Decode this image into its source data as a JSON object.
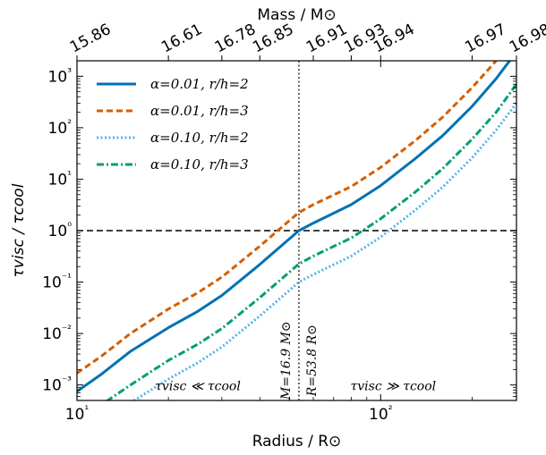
{
  "chart_data": {
    "type": "line",
    "title": "",
    "xlabel": "Radius / R⊙",
    "ylabel": "τvisc / τcool",
    "top_xlabel": "Mass / M⊙",
    "xscale": "log",
    "yscale": "log",
    "xlim": [
      10,
      280
    ],
    "ylim": [
      0.0005,
      2000
    ],
    "x_ticks": [
      {
        "value": 10,
        "label": "10¹"
      },
      {
        "value": 100,
        "label": "10²"
      }
    ],
    "y_ticks": [
      {
        "value": 0.001,
        "label": "10⁻³"
      },
      {
        "value": 0.01,
        "label": "10⁻²"
      },
      {
        "value": 0.1,
        "label": "10⁻¹"
      },
      {
        "value": 1,
        "label": "10⁰"
      },
      {
        "value": 10,
        "label": "10¹"
      },
      {
        "value": 100,
        "label": "10²"
      },
      {
        "value": 1000,
        "label": "10³"
      }
    ],
    "top_ticks": [
      {
        "radius": 10,
        "label": "15.86"
      },
      {
        "radius": 20,
        "label": "16.61"
      },
      {
        "radius": 30,
        "label": "16.78"
      },
      {
        "radius": 40,
        "label": "16.85"
      },
      {
        "radius": 60,
        "label": "16.91"
      },
      {
        "radius": 80,
        "label": "16.93"
      },
      {
        "radius": 100,
        "label": "16.94"
      },
      {
        "radius": 200,
        "label": "16.97"
      },
      {
        "radius": 280,
        "label": "16.98"
      }
    ],
    "legend_position": "top-left",
    "series": [
      {
        "name": "α=0.01, r/h=2",
        "color": "#0072b2",
        "style": "solid",
        "x": [
          10,
          12,
          15,
          20,
          25,
          30,
          40,
          53.8,
          60,
          80,
          100,
          130,
          160,
          200,
          240,
          280
        ],
        "y": [
          0.00075,
          0.0016,
          0.0045,
          0.013,
          0.027,
          0.055,
          0.22,
          1.0,
          1.4,
          3.2,
          7.5,
          25,
          70,
          260,
          900,
          3000
        ]
      },
      {
        "name": "α=0.01, r/h=3",
        "color": "#d55e00",
        "style": "dashed",
        "x": [
          10,
          12,
          15,
          20,
          25,
          30,
          40,
          53.8,
          60,
          80,
          100,
          130,
          160,
          200,
          240
        ],
        "y": [
          0.0017,
          0.0036,
          0.01,
          0.03,
          0.062,
          0.125,
          0.5,
          2.25,
          3.2,
          7.2,
          17,
          56,
          160,
          600,
          2000
        ]
      },
      {
        "name": "α=0.10, r/h=2",
        "color": "#56b4e9",
        "style": "dotted",
        "x": [
          15,
          20,
          25,
          30,
          40,
          53.8,
          60,
          80,
          100,
          130,
          160,
          200,
          240,
          280
        ],
        "y": [
          0.00045,
          0.0013,
          0.0027,
          0.0055,
          0.022,
          0.1,
          0.14,
          0.32,
          0.75,
          2.5,
          7,
          26,
          90,
          300
        ]
      },
      {
        "name": "α=0.10, r/h=3",
        "color": "#009e73",
        "style": "dashdot",
        "x": [
          12.5,
          15,
          20,
          25,
          30,
          40,
          53.8,
          60,
          80,
          100,
          130,
          160,
          200,
          240,
          280
        ],
        "y": [
          0.00048,
          0.001,
          0.003,
          0.0062,
          0.0125,
          0.05,
          0.225,
          0.32,
          0.72,
          1.7,
          5.6,
          16,
          60,
          200,
          700
        ]
      }
    ],
    "reference_lines": [
      {
        "orientation": "horizontal",
        "value": 1,
        "style": "dashed",
        "color": "#000000"
      },
      {
        "orientation": "vertical",
        "value": 53.8,
        "style": "dotted",
        "color": "#000000"
      }
    ],
    "annotations": [
      {
        "text": "M=16.9 M⊙",
        "x": 53.8,
        "y": 0.003
      },
      {
        "text": "R=53.8 R⊙",
        "x": 53.8,
        "y": 0.003
      },
      {
        "text": "τvisc ≪ τcool",
        "x": 25,
        "y": 0.0008
      },
      {
        "text": "τvisc ≫ τcool",
        "x": 110,
        "y": 0.0008
      }
    ]
  }
}
